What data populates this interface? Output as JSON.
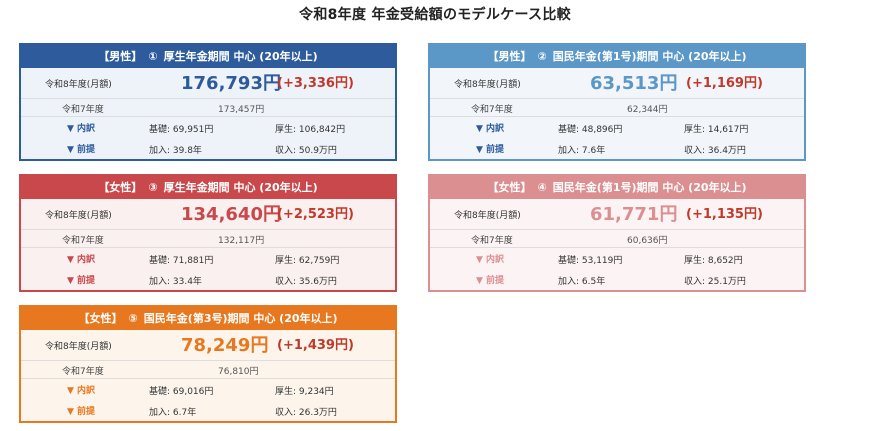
{
  "page_title": "令和8年度 年金受給額のモデルケース比較",
  "labels": {
    "current": "令和8年度(月額)",
    "previous": "令和7年度",
    "breakdown": "▼ 内訳",
    "premise": "▼ 前提"
  },
  "cards": [
    {
      "gender": "【男性】",
      "number": "①",
      "title": "厚生年金期間 中心 (20年以上)",
      "amount": "176,793円",
      "diff": "(+3,336円)",
      "previous_amount": "173,457円",
      "basic": "基礎: 69,951円",
      "kosei": "厚生: 106,842円",
      "kanyu": "加入: 39.8年",
      "shunyu": "収入: 50.9万円",
      "colors": {
        "header": "#2d5b9b",
        "bg": "#eef3fa",
        "amount": "#2d5b9b",
        "diff": "#c0392b",
        "tag": "#2d5b9b"
      }
    },
    {
      "gender": "【男性】",
      "number": "②",
      "title": "国民年金(第1号)期間 中心 (20年以上)",
      "amount": "63,513円",
      "diff": "(+1,169円)",
      "previous_amount": "62,344円",
      "basic": "基礎: 48,896円",
      "kosei": "厚生: 14,617円",
      "kanyu": "加入: 7.6年",
      "shunyu": "収入: 36.4万円",
      "colors": {
        "header": "#5b97c7",
        "bg": "#f2f6fa",
        "amount": "#5b97c7",
        "diff": "#c0392b",
        "tag": "#2d5b9b"
      }
    },
    {
      "gender": "【女性】",
      "number": "③",
      "title": "厚生年金期間 中心 (20年以上)",
      "amount": "134,640円",
      "diff": "(+2,523円)",
      "previous_amount": "132,117円",
      "basic": "基礎: 71,881円",
      "kosei": "厚生: 62,759円",
      "kanyu": "加入: 33.4年",
      "shunyu": "収入: 35.6万円",
      "colors": {
        "header": "#c8484b",
        "bg": "#fbf0f0",
        "amount": "#c8484b",
        "diff": "#c0392b",
        "tag": "#c8484b"
      }
    },
    {
      "gender": "【女性】",
      "number": "④",
      "title": "国民年金(第1号)期間 中心 (20年以上)",
      "amount": "61,771円",
      "diff": "(+1,135円)",
      "previous_amount": "60,636円",
      "basic": "基礎: 53,119円",
      "kosei": "厚生: 8,652円",
      "kanyu": "加入: 6.5年",
      "shunyu": "収入: 25.1万円",
      "colors": {
        "header": "#dc8f91",
        "bg": "#fcf4f4",
        "amount": "#dc8f91",
        "diff": "#c0392b",
        "tag": "#dc8f91"
      }
    },
    {
      "gender": "【女性】",
      "number": "⑤",
      "title": "国民年金(第3号)期間 中心 (20年以上)",
      "amount": "78,249円",
      "diff": "(+1,439円)",
      "previous_amount": "76,810円",
      "basic": "基礎: 69,016円",
      "kosei": "厚生: 9,234円",
      "kanyu": "加入: 6.7年",
      "shunyu": "収入: 26.3万円",
      "colors": {
        "header": "#e8781f",
        "bg": "#fdf5ec",
        "amount": "#e8781f",
        "diff": "#c0392b",
        "tag": "#e8781f"
      }
    }
  ]
}
